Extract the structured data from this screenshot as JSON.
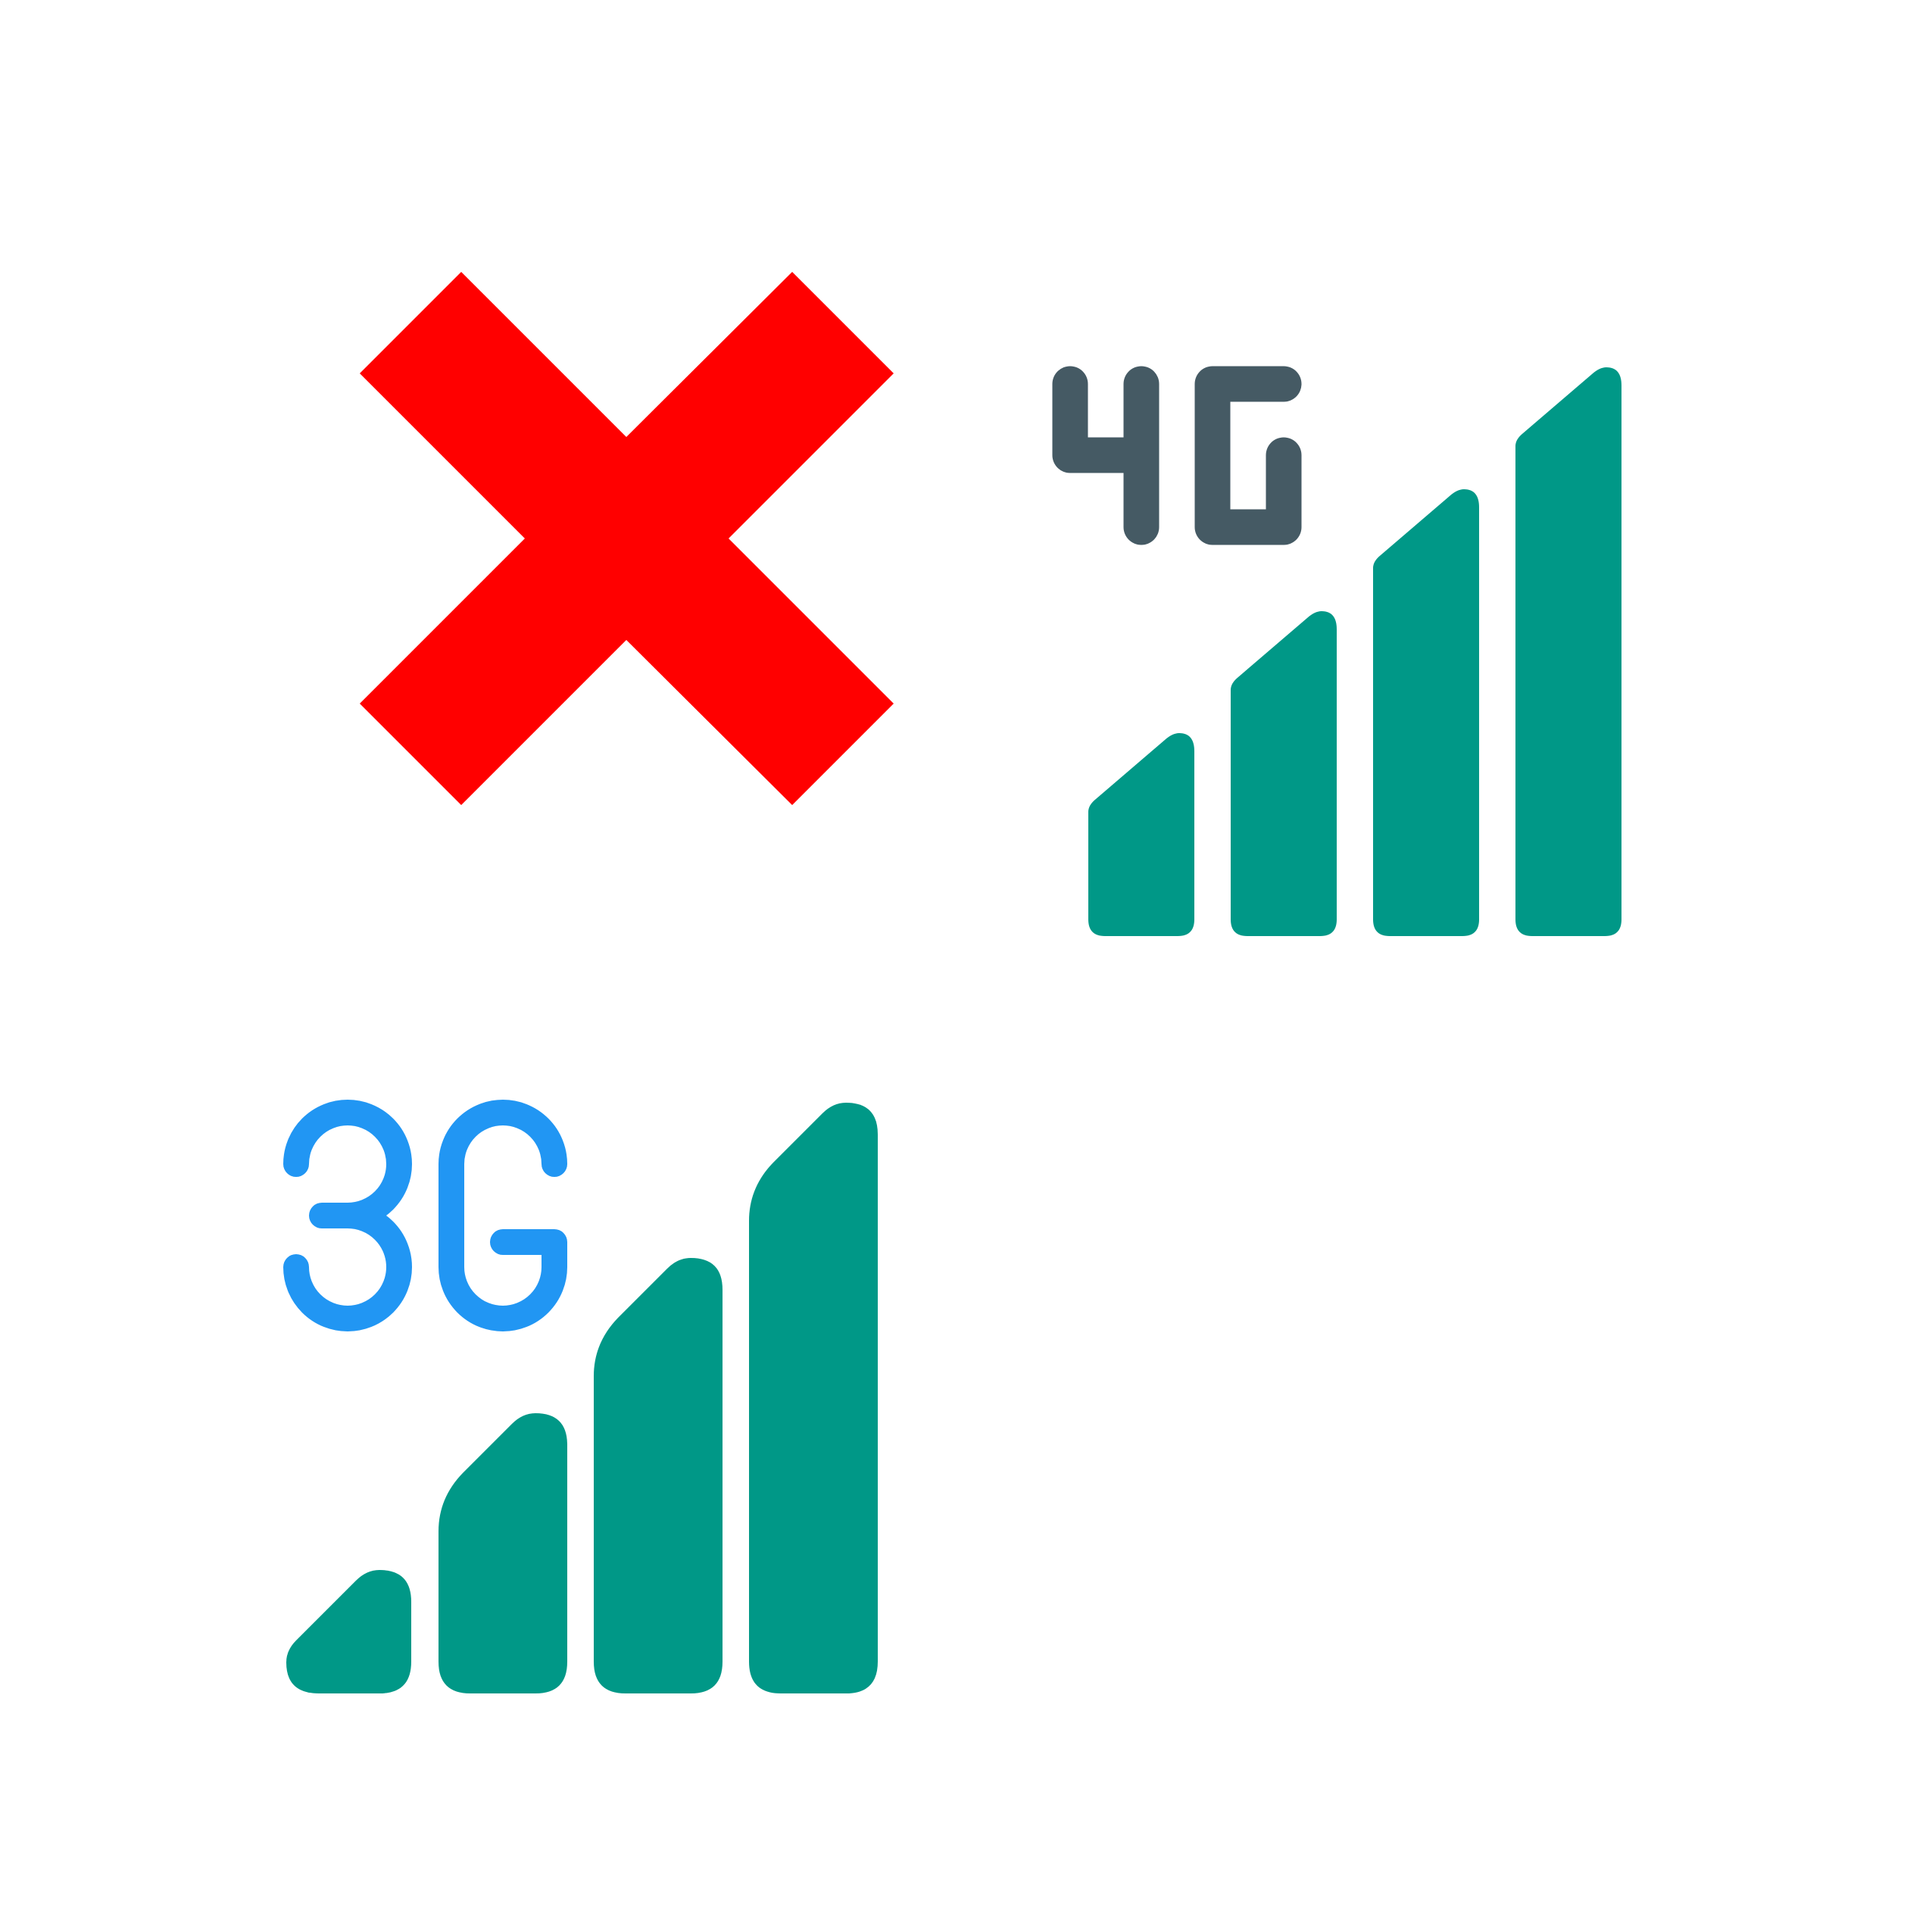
{
  "colors": {
    "background": "#ffffff",
    "cross": "#ff0000",
    "signal_bars": "#009887",
    "label_4g": "#455a64",
    "label_3g": "#2196f3"
  },
  "icons": {
    "cross": {
      "name": "red-x-cross-icon"
    },
    "signal_4g": {
      "name": "4g-signal-icon",
      "label": "4G",
      "bars": 4
    },
    "signal_3g": {
      "name": "3g-signal-icon",
      "label": "3G",
      "bars": 4
    }
  }
}
